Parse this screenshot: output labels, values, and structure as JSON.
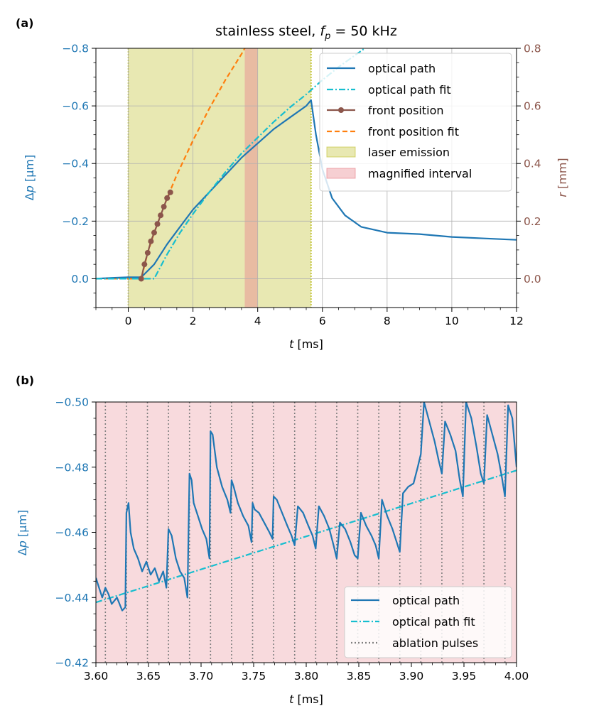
{
  "colors": {
    "optical_path": "#1f77b4",
    "optical_path_fit": "#17becf",
    "front_position": "#8c564b",
    "front_position_fit": "#ff7f0e",
    "laser_emission": "#bcbd22",
    "magnified_interval": "#e8868f",
    "ablation_pulses": "#7f7f7f",
    "grid": "#b0b0b0"
  },
  "chart_data": [
    {
      "panel_label": "(a)",
      "type": "line",
      "title_main": "stainless steel, ",
      "title_var": "f",
      "title_sub": "p",
      "title_tail": " = 50 kHz",
      "xlabel_var": "t",
      "xlabel_unit": " [ms]",
      "ylabel_left_delta": "Δ",
      "ylabel_left_var": "p",
      "ylabel_left_unit": " [µm]",
      "ylabel_right_var": "r",
      "ylabel_right_unit": " [mm]",
      "xlim": [
        -1,
        12
      ],
      "ylim_left": [
        0.1,
        -0.8
      ],
      "ylim_right": [
        -0.1,
        0.8
      ],
      "xticks": [
        0,
        2,
        4,
        6,
        8,
        10,
        12
      ],
      "xtick_labels": [
        "0",
        "2",
        "4",
        "6",
        "8",
        "10",
        "12"
      ],
      "yticks_left": [
        0.0,
        -0.2,
        -0.4,
        -0.6,
        -0.8
      ],
      "ytick_labels_left": [
        "0.0",
        "−0.2",
        "−0.4",
        "−0.6",
        "−0.8"
      ],
      "yticks_right": [
        0.0,
        0.2,
        0.4,
        0.6,
        0.8
      ],
      "ytick_labels_right": [
        "0.0",
        "0.2",
        "0.4",
        "0.6",
        "0.8"
      ],
      "grid": true,
      "legend_position": "top-right",
      "spans": [
        {
          "name": "laser emission",
          "x0": 0.0,
          "x1": 5.65
        },
        {
          "name": "magnified interval",
          "x0": 3.6,
          "x1": 4.0
        }
      ],
      "series": [
        {
          "name": "optical path",
          "axis": "left",
          "style": "solid",
          "x": [
            -1.0,
            -0.5,
            0.0,
            0.4,
            0.8,
            1.2,
            1.6,
            2.0,
            2.5,
            3.0,
            3.5,
            4.0,
            4.5,
            5.0,
            5.5,
            5.65,
            5.8,
            6.0,
            6.3,
            6.7,
            7.2,
            8.0,
            9.0,
            10.0,
            11.0,
            12.0
          ],
          "y": [
            0.0,
            -0.003,
            -0.005,
            -0.005,
            -0.05,
            -0.12,
            -0.18,
            -0.24,
            -0.3,
            -0.36,
            -0.42,
            -0.47,
            -0.52,
            -0.56,
            -0.6,
            -0.62,
            -0.5,
            -0.38,
            -0.28,
            -0.22,
            -0.18,
            -0.16,
            -0.155,
            -0.145,
            -0.14,
            -0.135
          ]
        },
        {
          "name": "optical path fit",
          "axis": "left",
          "style": "dash-dot",
          "x": [
            -1.0,
            0.0,
            0.5,
            0.8,
            1.2,
            1.6,
            2.0,
            2.5,
            3.0,
            3.5,
            4.0,
            4.5,
            5.0,
            5.5,
            6.0,
            6.5,
            7.0,
            7.5
          ],
          "y": [
            0.0,
            0.0,
            0.0,
            0.0,
            -0.085,
            -0.16,
            -0.225,
            -0.3,
            -0.37,
            -0.435,
            -0.49,
            -0.545,
            -0.595,
            -0.64,
            -0.69,
            -0.735,
            -0.775,
            -0.815
          ]
        },
        {
          "name": "front position",
          "axis": "right",
          "style": "solid-marker",
          "x": [
            0.4,
            0.5,
            0.6,
            0.7,
            0.8,
            0.9,
            1.0,
            1.1,
            1.2,
            1.3
          ],
          "y": [
            0.0,
            0.05,
            0.09,
            0.13,
            0.16,
            0.19,
            0.22,
            0.25,
            0.28,
            0.3
          ]
        },
        {
          "name": "front position fit",
          "axis": "right",
          "style": "dashed",
          "x": [
            -1.0,
            0.0,
            0.3,
            0.4,
            0.6,
            0.8,
            1.0,
            1.2,
            1.5,
            2.0,
            2.5,
            3.0,
            3.5,
            3.6
          ],
          "y": [
            0.0,
            0.0,
            0.0,
            0.0,
            0.09,
            0.16,
            0.22,
            0.28,
            0.36,
            0.48,
            0.59,
            0.69,
            0.78,
            0.8
          ]
        }
      ],
      "legend": [
        "optical path",
        "optical path fit",
        "front position",
        "front position fit",
        "laser emission",
        "magnified interval"
      ]
    },
    {
      "panel_label": "(b)",
      "type": "line",
      "xlabel_var": "t",
      "xlabel_unit": " [ms]",
      "ylabel_delta": "Δ",
      "ylabel_var": "p",
      "ylabel_unit": " [µm]",
      "xlim": [
        3.6,
        4.0
      ],
      "ylim": [
        -0.42,
        -0.5
      ],
      "xticks": [
        3.6,
        3.65,
        3.7,
        3.75,
        3.8,
        3.85,
        3.9,
        3.95,
        4.0
      ],
      "xtick_labels": [
        "3.60",
        "3.65",
        "3.70",
        "3.75",
        "3.80",
        "3.85",
        "3.90",
        "3.95",
        "4.00"
      ],
      "yticks": [
        -0.42,
        -0.44,
        -0.46,
        -0.48,
        -0.5
      ],
      "ytick_labels": [
        "−0.42",
        "−0.44",
        "−0.46",
        "−0.48",
        "−0.50"
      ],
      "grid": false,
      "legend_position": "bottom-right",
      "background_span": {
        "name": "magnified interval",
        "x0": 3.6,
        "x1": 4.0
      },
      "ablation_pulses": [
        3.609,
        3.629,
        3.649,
        3.669,
        3.689,
        3.709,
        3.729,
        3.749,
        3.769,
        3.789,
        3.809,
        3.829,
        3.849,
        3.869,
        3.889,
        3.909,
        3.929,
        3.949,
        3.969,
        3.989
      ],
      "series": [
        {
          "name": "optical path",
          "style": "solid",
          "x": [
            3.6,
            3.603,
            3.606,
            3.609,
            3.612,
            3.615,
            3.62,
            3.625,
            3.628,
            3.629,
            3.631,
            3.633,
            3.636,
            3.64,
            3.644,
            3.648,
            3.652,
            3.656,
            3.66,
            3.664,
            3.667,
            3.669,
            3.672,
            3.676,
            3.68,
            3.684,
            3.687,
            3.689,
            3.691,
            3.693,
            3.697,
            3.701,
            3.705,
            3.708,
            3.709,
            3.711,
            3.715,
            3.72,
            3.725,
            3.728,
            3.729,
            3.731,
            3.735,
            3.74,
            3.745,
            3.748,
            3.749,
            3.751,
            3.755,
            3.76,
            3.765,
            3.768,
            3.769,
            3.772,
            3.777,
            3.782,
            3.786,
            3.789,
            3.792,
            3.797,
            3.802,
            3.806,
            3.809,
            3.812,
            3.817,
            3.822,
            3.826,
            3.829,
            3.832,
            3.837,
            3.842,
            3.846,
            3.849,
            3.852,
            3.857,
            3.862,
            3.866,
            3.869,
            3.872,
            3.877,
            3.882,
            3.886,
            3.889,
            3.892,
            3.897,
            3.902,
            3.906,
            3.909,
            3.912,
            3.917,
            3.922,
            3.926,
            3.929,
            3.932,
            3.937,
            3.942,
            3.946,
            3.949,
            3.952,
            3.957,
            3.962,
            3.966,
            3.969,
            3.972,
            3.977,
            3.982,
            3.986,
            3.989,
            3.992,
            3.996,
            4.0
          ],
          "y": [
            -0.446,
            -0.443,
            -0.44,
            -0.443,
            -0.441,
            -0.438,
            -0.44,
            -0.436,
            -0.437,
            -0.466,
            -0.469,
            -0.46,
            -0.455,
            -0.452,
            -0.448,
            -0.451,
            -0.447,
            -0.449,
            -0.445,
            -0.448,
            -0.443,
            -0.461,
            -0.459,
            -0.452,
            -0.448,
            -0.446,
            -0.44,
            -0.478,
            -0.476,
            -0.469,
            -0.465,
            -0.461,
            -0.458,
            -0.452,
            -0.491,
            -0.49,
            -0.48,
            -0.474,
            -0.47,
            -0.466,
            -0.476,
            -0.474,
            -0.469,
            -0.465,
            -0.462,
            -0.457,
            -0.469,
            -0.467,
            -0.466,
            -0.463,
            -0.46,
            -0.458,
            -0.471,
            -0.47,
            -0.466,
            -0.462,
            -0.459,
            -0.456,
            -0.468,
            -0.466,
            -0.462,
            -0.459,
            -0.455,
            -0.468,
            -0.465,
            -0.461,
            -0.456,
            -0.452,
            -0.463,
            -0.461,
            -0.457,
            -0.453,
            -0.452,
            -0.466,
            -0.462,
            -0.459,
            -0.456,
            -0.452,
            -0.47,
            -0.465,
            -0.461,
            -0.457,
            -0.454,
            -0.472,
            -0.474,
            -0.475,
            -0.48,
            -0.484,
            -0.5,
            -0.494,
            -0.488,
            -0.482,
            -0.478,
            -0.494,
            -0.49,
            -0.485,
            -0.476,
            -0.471,
            -0.5,
            -0.495,
            -0.486,
            -0.478,
            -0.475,
            -0.496,
            -0.49,
            -0.484,
            -0.477,
            -0.471,
            -0.499,
            -0.495,
            -0.48
          ]
        },
        {
          "name": "optical path fit",
          "style": "dash-dot",
          "x": [
            3.6,
            4.0
          ],
          "y": [
            -0.4385,
            -0.479
          ]
        }
      ],
      "legend": [
        "optical path",
        "optical path fit",
        "ablation pulses"
      ]
    }
  ]
}
